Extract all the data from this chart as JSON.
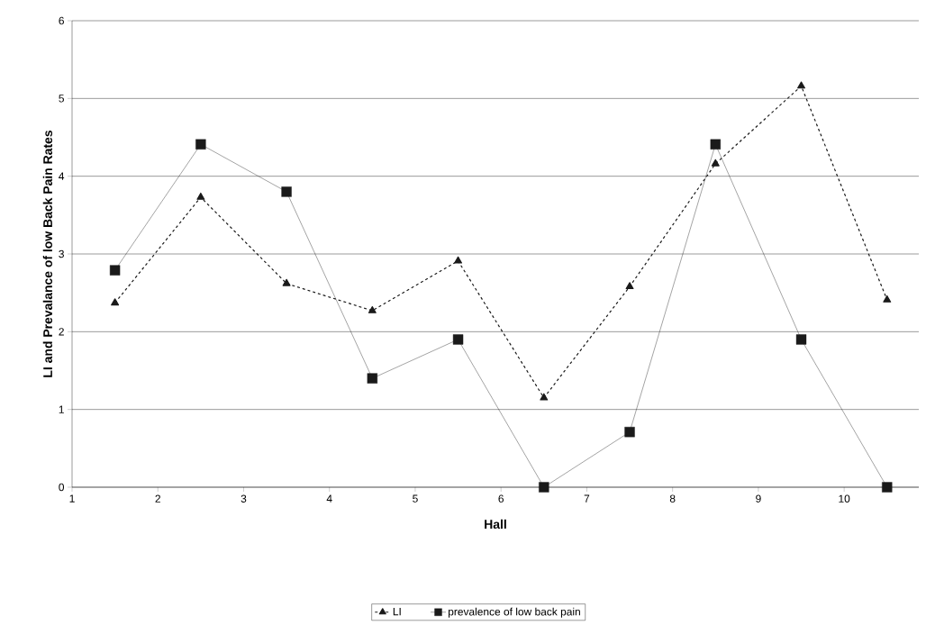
{
  "chart_data": {
    "type": "line",
    "xlabel": "Hall",
    "ylabel": "LI and Prevalance of low Back Pain Rates",
    "x": [
      1.5,
      2.5,
      3.5,
      4.5,
      5.5,
      6.5,
      7.5,
      8.5,
      9.5,
      10.5
    ],
    "series": [
      {
        "name": "LI",
        "color": "#1a1a1a",
        "marker": "triangle",
        "line_style": "dashed",
        "values": [
          2.37,
          3.73,
          2.62,
          2.27,
          2.91,
          1.15,
          2.58,
          4.16,
          5.16,
          2.41
        ]
      },
      {
        "name": "prevalence of low back pain",
        "color": "#1a1a1a",
        "marker": "square",
        "line_style": "solid",
        "values": [
          2.79,
          4.41,
          3.8,
          1.4,
          1.9,
          0,
          0.71,
          4.41,
          1.9,
          0
        ]
      }
    ],
    "xlim": [
      1,
      10.87
    ],
    "xticks": [
      1,
      2,
      3,
      4,
      5,
      6,
      7,
      8,
      9,
      10
    ],
    "ylim": [
      0,
      6
    ],
    "yticks": [
      0,
      1,
      2,
      3,
      4,
      5,
      6
    ],
    "grid": "y",
    "legend": "bottom"
  }
}
